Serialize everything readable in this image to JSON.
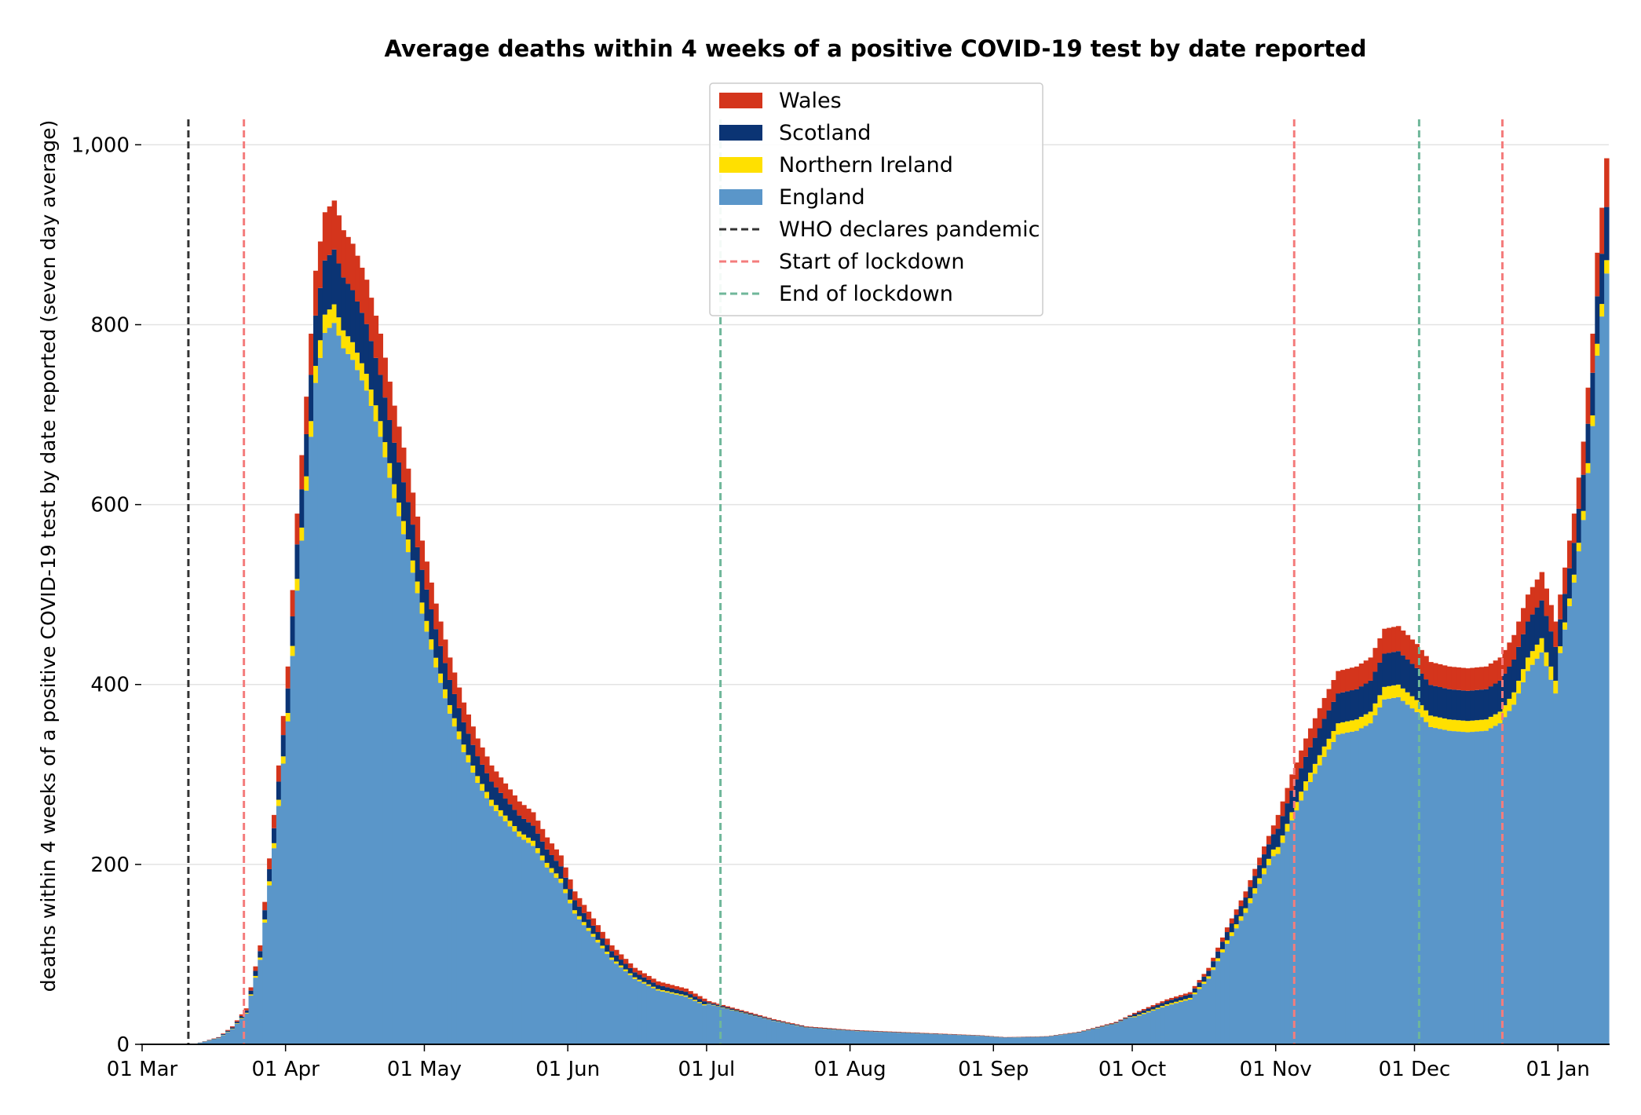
{
  "chart_data": {
    "type": "bar",
    "stacked": true,
    "title": "Average deaths within 4 weeks of a positive COVID-19 test by date reported",
    "ylabel": "deaths within 4 weeks of a positive COVID-19 test by date reported (seven day average)",
    "xlabel": "",
    "x_start": "2020-03-01",
    "x_end": "2021-01-11",
    "ylim": [
      0,
      1030
    ],
    "yticks": [
      0,
      200,
      400,
      600,
      800,
      1000
    ],
    "ytick_labels": [
      "0",
      "200",
      "400",
      "600",
      "800",
      "1,000"
    ],
    "xticks": [
      {
        "date": "2020-03-01",
        "label": "01 Mar"
      },
      {
        "date": "2020-04-01",
        "label": "01 Apr"
      },
      {
        "date": "2020-05-01",
        "label": "01 May"
      },
      {
        "date": "2020-06-01",
        "label": "01 Jun"
      },
      {
        "date": "2020-07-01",
        "label": "01 Jul"
      },
      {
        "date": "2020-08-01",
        "label": "01 Aug"
      },
      {
        "date": "2020-09-01",
        "label": "01 Sep"
      },
      {
        "date": "2020-10-01",
        "label": "01 Oct"
      },
      {
        "date": "2020-11-01",
        "label": "01 Nov"
      },
      {
        "date": "2020-12-01",
        "label": "01 Dec"
      },
      {
        "date": "2021-01-01",
        "label": "01 Jan"
      }
    ],
    "grid": "horizontal",
    "legend_position": "top-center",
    "series": [
      {
        "name": "England",
        "color": "#5a96c9"
      },
      {
        "name": "Northern Ireland",
        "color": "#ffe000"
      },
      {
        "name": "Scotland",
        "color": "#0b3474"
      },
      {
        "name": "Wales",
        "color": "#d4351c"
      }
    ],
    "total_anchors": [
      [
        "2020-03-13",
        2
      ],
      [
        "2020-03-17",
        8
      ],
      [
        "2020-03-20",
        20
      ],
      [
        "2020-03-23",
        40
      ],
      [
        "2020-03-26",
        110
      ],
      [
        "2020-03-29",
        255
      ],
      [
        "2020-04-01",
        420
      ],
      [
        "2020-04-03",
        590
      ],
      [
        "2020-04-05",
        720
      ],
      [
        "2020-04-07",
        860
      ],
      [
        "2020-04-09",
        925
      ],
      [
        "2020-04-11",
        938
      ],
      [
        "2020-04-13",
        905
      ],
      [
        "2020-04-15",
        890
      ],
      [
        "2020-04-18",
        850
      ],
      [
        "2020-04-21",
        790
      ],
      [
        "2020-04-24",
        710
      ],
      [
        "2020-04-27",
        640
      ],
      [
        "2020-04-30",
        560
      ],
      [
        "2020-05-03",
        490
      ],
      [
        "2020-05-06",
        430
      ],
      [
        "2020-05-09",
        380
      ],
      [
        "2020-05-12",
        340
      ],
      [
        "2020-05-15",
        310
      ],
      [
        "2020-05-18",
        290
      ],
      [
        "2020-05-21",
        270
      ],
      [
        "2020-05-24",
        258
      ],
      [
        "2020-05-27",
        230
      ],
      [
        "2020-05-30",
        210
      ],
      [
        "2020-06-02",
        170
      ],
      [
        "2020-06-06",
        140
      ],
      [
        "2020-06-10",
        110
      ],
      [
        "2020-06-15",
        85
      ],
      [
        "2020-06-20",
        70
      ],
      [
        "2020-06-26",
        62
      ],
      [
        "2020-07-01",
        48
      ],
      [
        "2020-07-08",
        38
      ],
      [
        "2020-07-15",
        28
      ],
      [
        "2020-07-22",
        20
      ],
      [
        "2020-08-01",
        16
      ],
      [
        "2020-08-15",
        13
      ],
      [
        "2020-08-29",
        10
      ],
      [
        "2020-09-03",
        8
      ],
      [
        "2020-09-12",
        9
      ],
      [
        "2020-09-19",
        14
      ],
      [
        "2020-09-27",
        25
      ],
      [
        "2020-10-01",
        35
      ],
      [
        "2020-10-08",
        50
      ],
      [
        "2020-10-13",
        58
      ],
      [
        "2020-10-17",
        85
      ],
      [
        "2020-10-21",
        130
      ],
      [
        "2020-10-25",
        170
      ],
      [
        "2020-10-29",
        220
      ],
      [
        "2020-11-01",
        255
      ],
      [
        "2020-11-04",
        300
      ],
      [
        "2020-11-07",
        340
      ],
      [
        "2020-11-11",
        385
      ],
      [
        "2020-11-14",
        415
      ],
      [
        "2020-11-18",
        420
      ],
      [
        "2020-11-21",
        430
      ],
      [
        "2020-11-24",
        462
      ],
      [
        "2020-11-27",
        465
      ],
      [
        "2020-12-01",
        445
      ],
      [
        "2020-12-04",
        425
      ],
      [
        "2020-12-08",
        420
      ],
      [
        "2020-12-12",
        418
      ],
      [
        "2020-12-16",
        420
      ],
      [
        "2020-12-19",
        430
      ],
      [
        "2020-12-22",
        455
      ],
      [
        "2020-12-25",
        500
      ],
      [
        "2020-12-28",
        525
      ],
      [
        "2020-12-31",
        470
      ],
      [
        "2021-01-02",
        530
      ],
      [
        "2021-01-04",
        590
      ],
      [
        "2021-01-06",
        670
      ],
      [
        "2021-01-08",
        790
      ],
      [
        "2021-01-09",
        880
      ],
      [
        "2021-01-10",
        930
      ],
      [
        "2021-01-11",
        985
      ]
    ],
    "vertical_markers": [
      {
        "date": "2020-03-11",
        "label": "WHO declares pandemic",
        "color": "#333333"
      },
      {
        "date": "2020-03-23",
        "label": "Start of lockdown",
        "color": "#f47c7c"
      },
      {
        "date": "2020-07-04",
        "label": "End of lockdown",
        "color": "#6fb79a"
      },
      {
        "date": "2020-11-05",
        "label": "Start of lockdown",
        "color": "#f47c7c"
      },
      {
        "date": "2020-12-02",
        "label": "End of lockdown",
        "color": "#6fb79a"
      },
      {
        "date": "2020-12-20",
        "label": "Start of lockdown",
        "color": "#f47c7c"
      }
    ]
  },
  "legend": {
    "items": [
      {
        "label": "Wales",
        "kind": "patch",
        "color": "#d4351c"
      },
      {
        "label": "Scotland",
        "kind": "patch",
        "color": "#0b3474"
      },
      {
        "label": "Northern Ireland",
        "kind": "patch",
        "color": "#ffe000"
      },
      {
        "label": "England",
        "kind": "patch",
        "color": "#5a96c9"
      },
      {
        "label": "WHO declares pandemic",
        "kind": "dash",
        "color": "#333333"
      },
      {
        "label": "Start of lockdown",
        "kind": "dash",
        "color": "#f47c7c"
      },
      {
        "label": "End of lockdown",
        "kind": "dash",
        "color": "#6fb79a"
      }
    ]
  }
}
